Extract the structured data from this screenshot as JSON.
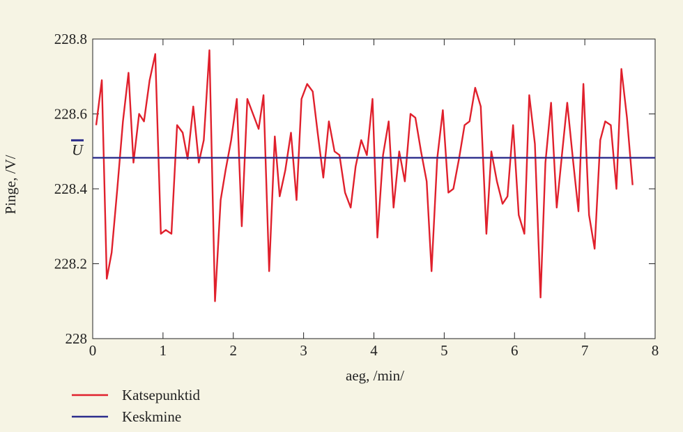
{
  "chart_data": {
    "type": "line",
    "xlabel": "aeg, /min/",
    "ylabel": "Pinge, /V/",
    "xlim": [
      0,
      8
    ],
    "ylim": [
      228,
      228.8
    ],
    "xticks": [
      0,
      1,
      2,
      3,
      4,
      5,
      6,
      7,
      8
    ],
    "xtick_labels": [
      "0",
      "1",
      "2",
      "3",
      "4",
      "5",
      "6",
      "7",
      "8"
    ],
    "yticks": [
      228,
      228.2,
      228.4,
      228.6,
      228.8
    ],
    "ytick_labels": [
      "228",
      "228.2",
      "228.4",
      "228.6",
      "228.8"
    ],
    "grid": false,
    "legend_position": "bottom-left",
    "series": [
      {
        "name": "Katsepunktid",
        "color": "#e0202c",
        "x": [
          0.05,
          0.13,
          0.2,
          0.27,
          0.35,
          0.43,
          0.51,
          0.58,
          0.66,
          0.73,
          0.81,
          0.89,
          0.97,
          1.04,
          1.12,
          1.2,
          1.28,
          1.35,
          1.43,
          1.51,
          1.58,
          1.66,
          1.74,
          1.82,
          1.89,
          1.97,
          2.05,
          2.12,
          2.2,
          2.28,
          2.36,
          2.43,
          2.51,
          2.59,
          2.66,
          2.74,
          2.82,
          2.9,
          2.97,
          3.05,
          3.13,
          3.2,
          3.28,
          3.36,
          3.44,
          3.51,
          3.59,
          3.67,
          3.74,
          3.82,
          3.9,
          3.98,
          4.05,
          4.13,
          4.21,
          4.28,
          4.36,
          4.44,
          4.52,
          4.59,
          4.67,
          4.75,
          4.82,
          4.9,
          4.98,
          5.06,
          5.13,
          5.21,
          5.29,
          5.36,
          5.44,
          5.52,
          5.6,
          5.67,
          5.75,
          5.83,
          5.9,
          5.98,
          6.06,
          6.14,
          6.21,
          6.29,
          6.37,
          6.44,
          6.52,
          6.6,
          6.68,
          6.75,
          6.83,
          6.91,
          6.98,
          7.06,
          7.14,
          7.22,
          7.29,
          7.37,
          7.45,
          7.52,
          7.6,
          7.68
        ],
        "values": [
          228.57,
          228.69,
          228.16,
          228.23,
          228.4,
          228.58,
          228.71,
          228.47,
          228.6,
          228.58,
          228.69,
          228.76,
          228.28,
          228.29,
          228.28,
          228.57,
          228.55,
          228.48,
          228.62,
          228.47,
          228.53,
          228.77,
          228.1,
          228.37,
          228.45,
          228.53,
          228.64,
          228.3,
          228.64,
          228.6,
          228.56,
          228.65,
          228.18,
          228.54,
          228.38,
          228.45,
          228.55,
          228.37,
          228.64,
          228.68,
          228.66,
          228.55,
          228.43,
          228.58,
          228.5,
          228.49,
          228.39,
          228.35,
          228.46,
          228.53,
          228.49,
          228.64,
          228.27,
          228.49,
          228.58,
          228.35,
          228.5,
          228.42,
          228.6,
          228.59,
          228.5,
          228.42,
          228.18,
          228.48,
          228.61,
          228.39,
          228.4,
          228.48,
          228.57,
          228.58,
          228.67,
          228.62,
          228.28,
          228.5,
          228.42,
          228.36,
          228.38,
          228.57,
          228.33,
          228.28,
          228.65,
          228.52,
          228.11,
          228.47,
          228.63,
          228.35,
          228.5,
          228.63,
          228.48,
          228.34,
          228.68,
          228.33,
          228.24,
          228.53,
          228.58,
          228.57,
          228.4,
          228.72,
          228.59,
          228.41
        ]
      },
      {
        "name": "Keskmine",
        "color": "#2b2c8c",
        "x": [
          0,
          8
        ],
        "values": [
          228.483,
          228.483
        ]
      }
    ],
    "annotations": [
      {
        "label": "U",
        "overline": true,
        "y": 228.483,
        "color": "#2b2c8c"
      }
    ]
  }
}
